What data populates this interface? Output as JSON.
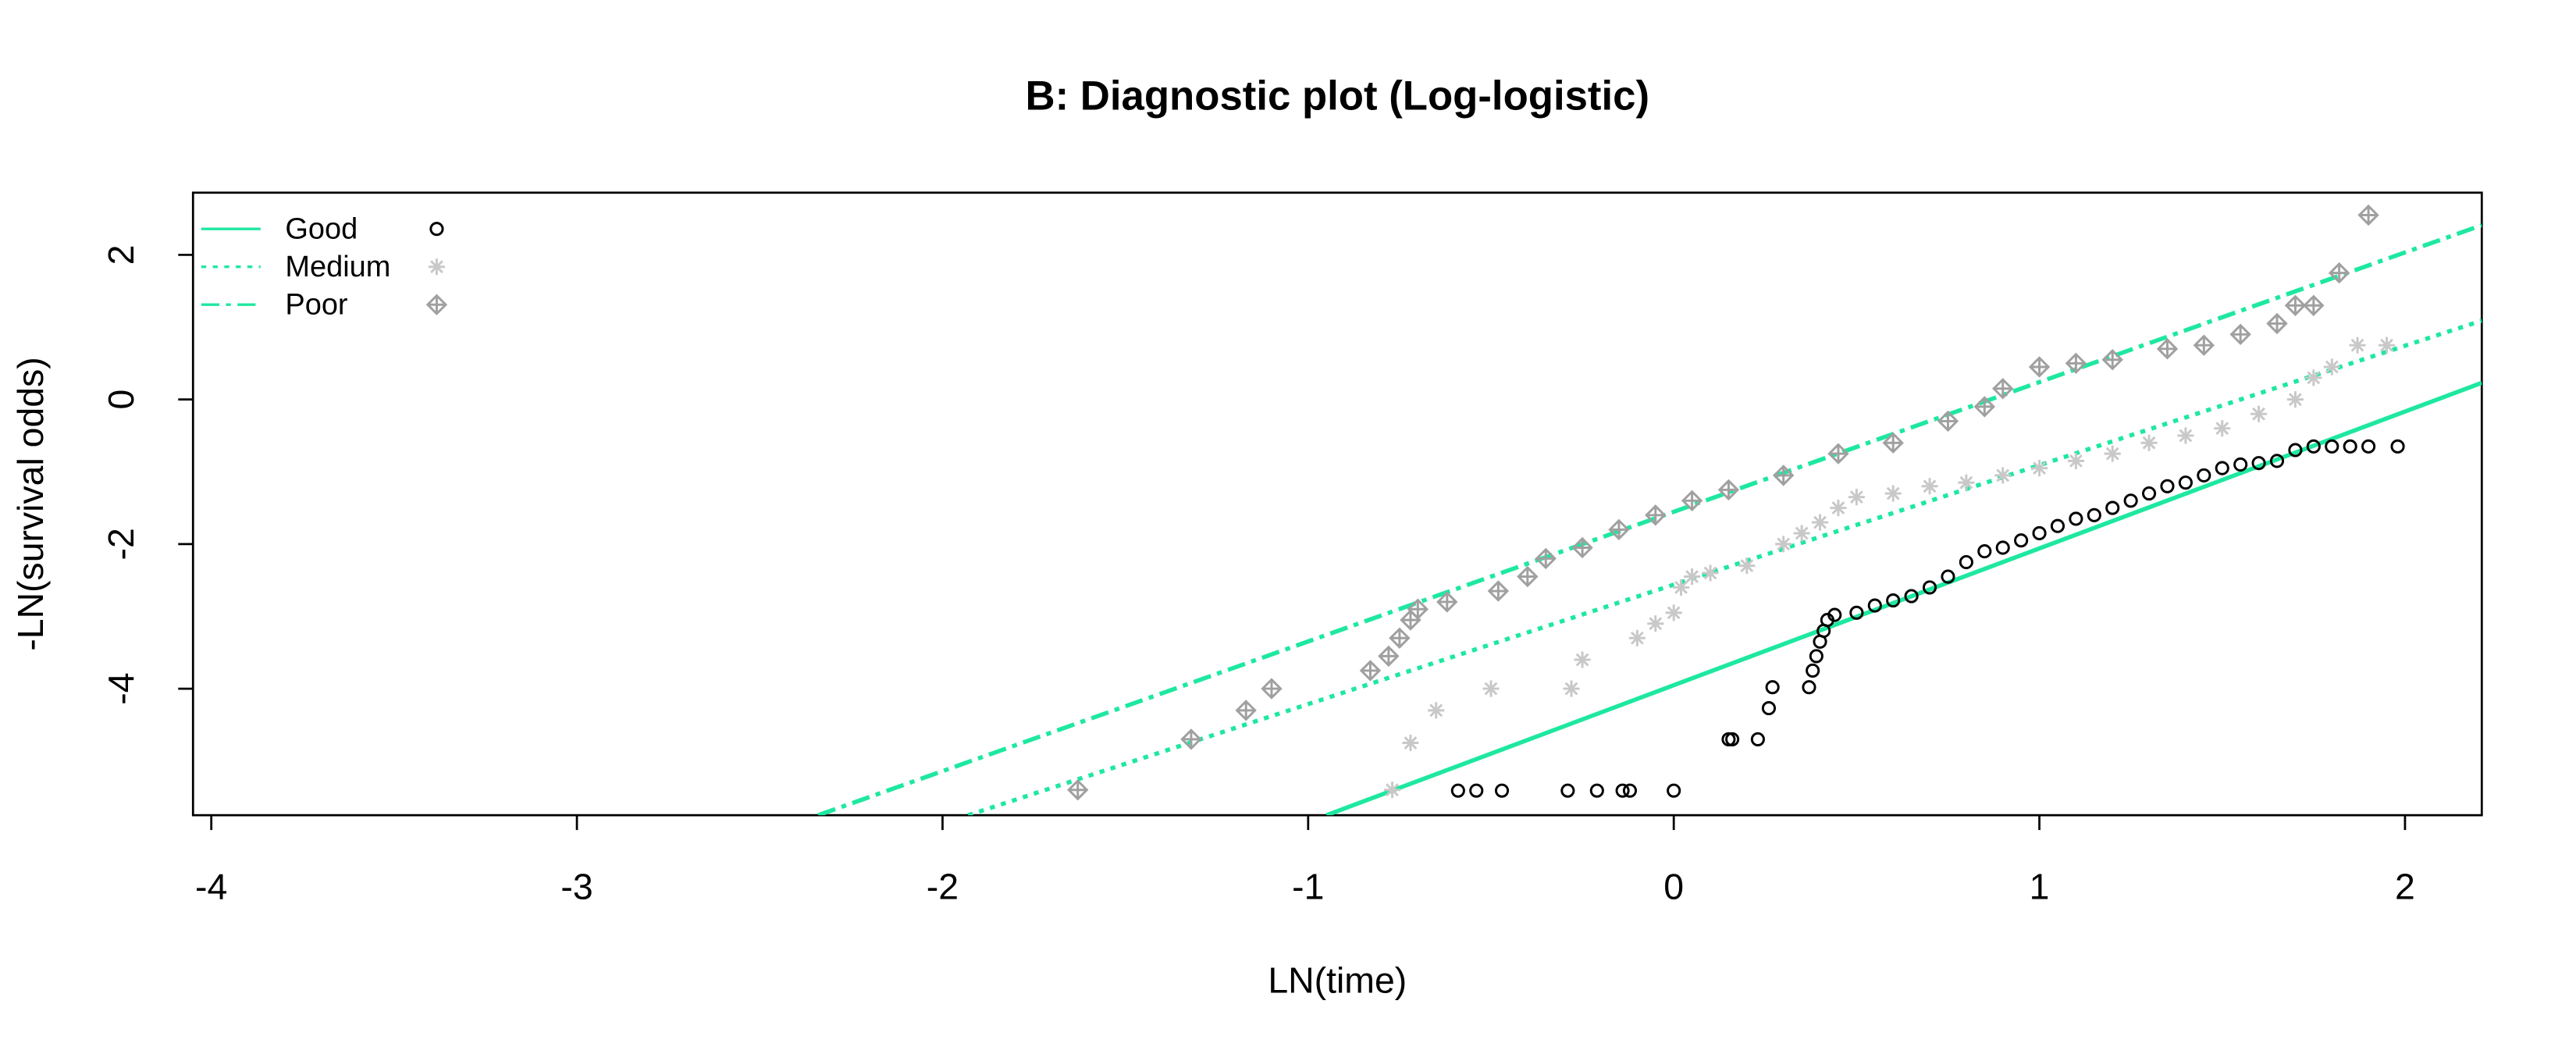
{
  "chart_data": {
    "type": "scatter",
    "title": "B: Diagnostic plot (Log-logistic)",
    "x_label": "LN(time)",
    "y_label": "-LN(survival odds)",
    "xlim": [
      -4.05,
      2.21
    ],
    "ylim": [
      -5.75,
      2.86
    ],
    "xticks": [
      -4,
      -3,
      -2,
      -1,
      0,
      1,
      2
    ],
    "yticks": [
      -4,
      -2,
      0,
      2
    ],
    "legend": "top-left",
    "series": [
      {
        "name": "Good",
        "line_color": "#1ee8a0",
        "line_style": "solid",
        "point_color": "#000000",
        "marker": "circle",
        "fit": {
          "x": [
            -0.95,
            2.21
          ],
          "values": [
            -5.75,
            0.23
          ]
        },
        "points": {
          "x": [
            -0.59,
            -0.54,
            -0.47,
            -0.29,
            -0.21,
            -0.14,
            -0.12,
            0.0,
            0.15,
            0.16,
            0.23,
            0.26,
            0.27,
            0.37,
            0.38,
            0.39,
            0.4,
            0.41,
            0.42,
            0.44,
            0.5,
            0.55,
            0.6,
            0.65,
            0.7,
            0.75,
            0.8,
            0.85,
            0.9,
            0.95,
            1.0,
            1.05,
            1.1,
            1.15,
            1.2,
            1.25,
            1.3,
            1.35,
            1.4,
            1.45,
            1.5,
            1.55,
            1.6,
            1.65,
            1.7,
            1.75,
            1.8,
            1.85,
            1.9,
            1.98
          ],
          "values": [
            -5.41,
            -5.41,
            -5.41,
            -5.41,
            -5.41,
            -5.41,
            -5.41,
            -5.41,
            -4.7,
            -4.7,
            -4.7,
            -4.27,
            -3.98,
            -3.98,
            -3.75,
            -3.55,
            -3.35,
            -3.2,
            -3.05,
            -2.98,
            -2.95,
            -2.85,
            -2.78,
            -2.72,
            -2.6,
            -2.45,
            -2.25,
            -2.1,
            -2.05,
            -1.95,
            -1.85,
            -1.75,
            -1.65,
            -1.6,
            -1.5,
            -1.4,
            -1.3,
            -1.2,
            -1.15,
            -1.05,
            -0.95,
            -0.9,
            -0.88,
            -0.85,
            -0.7,
            -0.65,
            -0.65,
            -0.65,
            -0.65,
            -0.65
          ]
        }
      },
      {
        "name": "Medium",
        "line_color": "#1ee8a0",
        "line_style": "dotted",
        "point_color": "#c8c8c8",
        "marker": "asterisk",
        "fit": {
          "x": [
            -1.93,
            2.21
          ],
          "values": [
            -5.75,
            1.09
          ]
        },
        "points": {
          "x": [
            -0.77,
            -0.72,
            -0.65,
            -0.5,
            -0.28,
            -0.25,
            -0.1,
            -0.05,
            0.0,
            0.02,
            0.05,
            0.1,
            0.2,
            0.3,
            0.35,
            0.4,
            0.45,
            0.5,
            0.6,
            0.7,
            0.8,
            0.9,
            1.0,
            1.1,
            1.2,
            1.3,
            1.4,
            1.5,
            1.6,
            1.7,
            1.75,
            1.8,
            1.87,
            1.95
          ],
          "values": [
            -5.4,
            -4.75,
            -4.3,
            -4.0,
            -4.0,
            -3.6,
            -3.3,
            -3.1,
            -2.95,
            -2.6,
            -2.45,
            -2.4,
            -2.3,
            -2.0,
            -1.85,
            -1.7,
            -1.5,
            -1.35,
            -1.3,
            -1.2,
            -1.15,
            -1.05,
            -0.95,
            -0.85,
            -0.75,
            -0.6,
            -0.5,
            -0.4,
            -0.2,
            0.0,
            0.3,
            0.45,
            0.75,
            0.75
          ]
        }
      },
      {
        "name": "Poor",
        "line_color": "#1ee8a0",
        "line_style": "dashdot",
        "point_color": "#a0a0a0",
        "marker": "diamond-plus",
        "fit": {
          "x": [
            -2.34,
            2.21
          ],
          "values": [
            -5.75,
            2.41
          ]
        },
        "points": {
          "x": [
            -1.63,
            -1.32,
            -1.17,
            -1.1,
            -0.83,
            -0.78,
            -0.75,
            -0.72,
            -0.7,
            -0.62,
            -0.48,
            -0.4,
            -0.35,
            -0.25,
            -0.15,
            -0.05,
            0.05,
            0.15,
            0.3,
            0.45,
            0.6,
            0.75,
            0.85,
            0.9,
            1.0,
            1.1,
            1.2,
            1.35,
            1.45,
            1.55,
            1.65,
            1.7,
            1.75,
            1.82,
            1.9
          ],
          "values": [
            -5.4,
            -4.7,
            -4.3,
            -4.0,
            -3.75,
            -3.55,
            -3.3,
            -3.05,
            -2.9,
            -2.8,
            -2.65,
            -2.45,
            -2.2,
            -2.05,
            -1.8,
            -1.6,
            -1.4,
            -1.25,
            -1.05,
            -0.75,
            -0.6,
            -0.3,
            -0.1,
            0.15,
            0.45,
            0.5,
            0.55,
            0.7,
            0.75,
            0.9,
            1.05,
            1.3,
            1.3,
            1.75,
            2.55
          ]
        }
      }
    ]
  }
}
